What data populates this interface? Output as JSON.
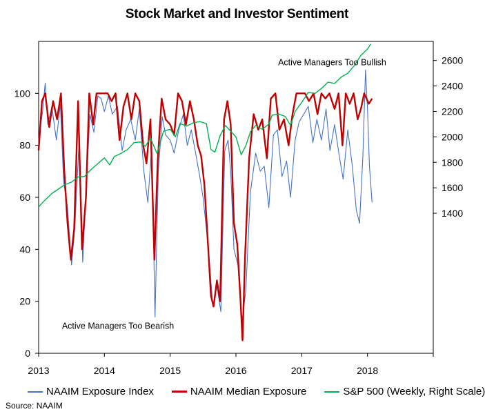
{
  "chart_data": {
    "type": "line",
    "title": "Stock Market and Investor Sentiment",
    "x_ticks": [
      "2013",
      "2014",
      "2015",
      "2016",
      "2017",
      "2018"
    ],
    "xlim": [
      2013.0,
      2019.0
    ],
    "y_left": {
      "ticks": [
        "0",
        "20",
        "40",
        "60",
        "80",
        "100"
      ],
      "range": [
        0,
        120
      ]
    },
    "y_right": {
      "ticks": [
        "1400",
        "1600",
        "1800",
        "2000",
        "2200",
        "2400",
        "2600"
      ],
      "range": [
        300,
        2750
      ]
    },
    "grid": false,
    "legend_position": "bottom",
    "annotations": [
      {
        "text": "Active Managers  Too Bullish",
        "x": 2017.95,
        "y": 110
      },
      {
        "text": "Active Managers  Too Bearish",
        "x": 2013.25,
        "y": 10
      }
    ],
    "source": "Source:  NAAIM",
    "series": [
      {
        "name": "NAAIM Exposure Index",
        "axis": "left",
        "color": "#4472c4",
        "points": [
          [
            2013.0,
            82
          ],
          [
            2013.06,
            93
          ],
          [
            2013.1,
            104
          ],
          [
            2013.14,
            88
          ],
          [
            2013.2,
            95
          ],
          [
            2013.27,
            82
          ],
          [
            2013.33,
            96
          ],
          [
            2013.38,
            66
          ],
          [
            2013.44,
            56
          ],
          [
            2013.5,
            34
          ],
          [
            2013.55,
            48
          ],
          [
            2013.62,
            84
          ],
          [
            2013.67,
            35
          ],
          [
            2013.72,
            62
          ],
          [
            2013.78,
            92
          ],
          [
            2013.84,
            85
          ],
          [
            2013.9,
            99
          ],
          [
            2013.95,
            98
          ],
          [
            2014.0,
            93
          ],
          [
            2014.06,
            99
          ],
          [
            2014.12,
            92
          ],
          [
            2014.2,
            95
          ],
          [
            2014.27,
            78
          ],
          [
            2014.33,
            86
          ],
          [
            2014.4,
            90
          ],
          [
            2014.47,
            82
          ],
          [
            2014.53,
            94
          ],
          [
            2014.6,
            70
          ],
          [
            2014.66,
            58
          ],
          [
            2014.72,
            80
          ],
          [
            2014.77,
            14
          ],
          [
            2014.82,
            70
          ],
          [
            2014.88,
            91
          ],
          [
            2014.93,
            84
          ],
          [
            2015.0,
            82
          ],
          [
            2015.06,
            77
          ],
          [
            2015.13,
            86
          ],
          [
            2015.2,
            92
          ],
          [
            2015.26,
            80
          ],
          [
            2015.32,
            86
          ],
          [
            2015.38,
            78
          ],
          [
            2015.45,
            68
          ],
          [
            2015.5,
            60
          ],
          [
            2015.55,
            48
          ],
          [
            2015.6,
            34
          ],
          [
            2015.65,
            18
          ],
          [
            2015.71,
            26
          ],
          [
            2015.77,
            16
          ],
          [
            2015.83,
            78
          ],
          [
            2015.88,
            82
          ],
          [
            2015.92,
            70
          ],
          [
            2015.97,
            40
          ],
          [
            2016.03,
            34
          ],
          [
            2016.09,
            12
          ],
          [
            2016.15,
            24
          ],
          [
            2016.22,
            62
          ],
          [
            2016.3,
            77
          ],
          [
            2016.37,
            70
          ],
          [
            2016.43,
            72
          ],
          [
            2016.5,
            56
          ],
          [
            2016.57,
            84
          ],
          [
            2016.63,
            86
          ],
          [
            2016.7,
            68
          ],
          [
            2016.77,
            74
          ],
          [
            2016.83,
            60
          ],
          [
            2016.9,
            82
          ],
          [
            2016.96,
            89
          ],
          [
            2017.03,
            92
          ],
          [
            2017.1,
            95
          ],
          [
            2017.17,
            81
          ],
          [
            2017.23,
            90
          ],
          [
            2017.3,
            82
          ],
          [
            2017.37,
            94
          ],
          [
            2017.43,
            78
          ],
          [
            2017.5,
            88
          ],
          [
            2017.57,
            76
          ],
          [
            2017.63,
            67
          ],
          [
            2017.7,
            86
          ],
          [
            2017.77,
            72
          ],
          [
            2017.83,
            55
          ],
          [
            2017.88,
            50
          ],
          [
            2017.93,
            76
          ],
          [
            2017.97,
            109
          ],
          [
            2018.0,
            94
          ],
          [
            2018.03,
            72
          ],
          [
            2018.07,
            58
          ]
        ]
      },
      {
        "name": "NAAIM Median Exposure",
        "axis": "left",
        "color": "#c00000",
        "points": [
          [
            2013.0,
            78
          ],
          [
            2013.05,
            97
          ],
          [
            2013.1,
            100
          ],
          [
            2013.16,
            87
          ],
          [
            2013.22,
            97
          ],
          [
            2013.28,
            90
          ],
          [
            2013.34,
            100
          ],
          [
            2013.39,
            70
          ],
          [
            2013.44,
            50
          ],
          [
            2013.49,
            36
          ],
          [
            2013.54,
            48
          ],
          [
            2013.6,
            97
          ],
          [
            2013.66,
            40
          ],
          [
            2013.72,
            60
          ],
          [
            2013.77,
            100
          ],
          [
            2013.83,
            88
          ],
          [
            2013.88,
            100
          ],
          [
            2013.95,
            100
          ],
          [
            2014.05,
            100
          ],
          [
            2014.11,
            97
          ],
          [
            2014.17,
            100
          ],
          [
            2014.23,
            82
          ],
          [
            2014.29,
            95
          ],
          [
            2014.35,
            100
          ],
          [
            2014.41,
            90
          ],
          [
            2014.47,
            100
          ],
          [
            2014.53,
            97
          ],
          [
            2014.59,
            80
          ],
          [
            2014.64,
            73
          ],
          [
            2014.7,
            90
          ],
          [
            2014.76,
            36
          ],
          [
            2014.81,
            74
          ],
          [
            2014.87,
            98
          ],
          [
            2014.93,
            90
          ],
          [
            2015.0,
            88
          ],
          [
            2015.06,
            84
          ],
          [
            2015.12,
            100
          ],
          [
            2015.18,
            97
          ],
          [
            2015.24,
            88
          ],
          [
            2015.3,
            97
          ],
          [
            2015.36,
            90
          ],
          [
            2015.42,
            80
          ],
          [
            2015.47,
            76
          ],
          [
            2015.52,
            65
          ],
          [
            2015.57,
            44
          ],
          [
            2015.62,
            22
          ],
          [
            2015.66,
            18
          ],
          [
            2015.71,
            28
          ],
          [
            2015.76,
            20
          ],
          [
            2015.82,
            90
          ],
          [
            2015.87,
            97
          ],
          [
            2015.92,
            88
          ],
          [
            2015.97,
            50
          ],
          [
            2016.02,
            42
          ],
          [
            2016.07,
            20
          ],
          [
            2016.1,
            5
          ],
          [
            2016.14,
            38
          ],
          [
            2016.2,
            75
          ],
          [
            2016.27,
            92
          ],
          [
            2016.34,
            86
          ],
          [
            2016.4,
            90
          ],
          [
            2016.47,
            75
          ],
          [
            2016.53,
            98
          ],
          [
            2016.6,
            100
          ],
          [
            2016.66,
            86
          ],
          [
            2016.73,
            90
          ],
          [
            2016.8,
            80
          ],
          [
            2016.86,
            92
          ],
          [
            2016.92,
            100
          ],
          [
            2016.98,
            100
          ],
          [
            2017.05,
            100
          ],
          [
            2017.11,
            97
          ],
          [
            2017.18,
            100
          ],
          [
            2017.24,
            92
          ],
          [
            2017.3,
            100
          ],
          [
            2017.36,
            98
          ],
          [
            2017.42,
            100
          ],
          [
            2017.5,
            94
          ],
          [
            2017.56,
            100
          ],
          [
            2017.62,
            80
          ],
          [
            2017.67,
            100
          ],
          [
            2017.73,
            96
          ],
          [
            2017.79,
            100
          ],
          [
            2017.85,
            90
          ],
          [
            2017.9,
            94
          ],
          [
            2017.95,
            100
          ],
          [
            2018.02,
            96
          ],
          [
            2018.07,
            98
          ]
        ]
      },
      {
        "name": "S&P 500 (Weekly, Right Scale)",
        "axis": "right",
        "color": "#00b050",
        "points": [
          [
            2013.0,
            1450
          ],
          [
            2013.1,
            1505
          ],
          [
            2013.2,
            1555
          ],
          [
            2013.3,
            1590
          ],
          [
            2013.4,
            1625
          ],
          [
            2013.5,
            1645
          ],
          [
            2013.6,
            1685
          ],
          [
            2013.7,
            1690
          ],
          [
            2013.8,
            1745
          ],
          [
            2013.9,
            1790
          ],
          [
            2014.0,
            1835
          ],
          [
            2014.08,
            1780
          ],
          [
            2014.15,
            1845
          ],
          [
            2014.25,
            1870
          ],
          [
            2014.35,
            1900
          ],
          [
            2014.45,
            1955
          ],
          [
            2014.55,
            1960
          ],
          [
            2014.62,
            1925
          ],
          [
            2014.7,
            1990
          ],
          [
            2014.8,
            1870
          ],
          [
            2014.9,
            2045
          ],
          [
            2015.0,
            2060
          ],
          [
            2015.08,
            2000
          ],
          [
            2015.15,
            2105
          ],
          [
            2015.25,
            2085
          ],
          [
            2015.35,
            2110
          ],
          [
            2015.45,
            2120
          ],
          [
            2015.55,
            2105
          ],
          [
            2015.62,
            1900
          ],
          [
            2015.68,
            1880
          ],
          [
            2015.76,
            2010
          ],
          [
            2015.84,
            2090
          ],
          [
            2015.92,
            2045
          ],
          [
            2016.0,
            2000
          ],
          [
            2016.08,
            1860
          ],
          [
            2016.15,
            1930
          ],
          [
            2016.22,
            2040
          ],
          [
            2016.3,
            2090
          ],
          [
            2016.4,
            2060
          ],
          [
            2016.5,
            2100
          ],
          [
            2016.55,
            2170
          ],
          [
            2016.65,
            2180
          ],
          [
            2016.75,
            2160
          ],
          [
            2016.83,
            2090
          ],
          [
            2016.9,
            2200
          ],
          [
            2017.0,
            2270
          ],
          [
            2017.1,
            2350
          ],
          [
            2017.2,
            2340
          ],
          [
            2017.3,
            2380
          ],
          [
            2017.4,
            2430
          ],
          [
            2017.5,
            2420
          ],
          [
            2017.6,
            2470
          ],
          [
            2017.7,
            2500
          ],
          [
            2017.8,
            2560
          ],
          [
            2017.9,
            2640
          ],
          [
            2018.0,
            2690
          ],
          [
            2018.05,
            2730
          ]
        ]
      }
    ]
  },
  "source_label": "Source:  NAAIM"
}
